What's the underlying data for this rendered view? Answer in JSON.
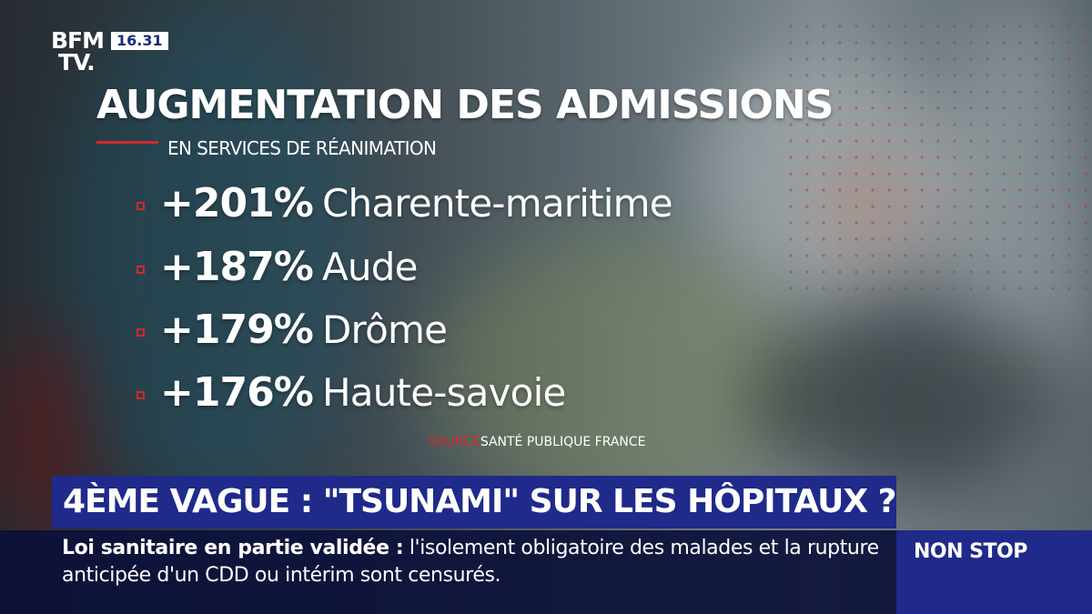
{
  "channel": {
    "logo_line1": "BFM",
    "logo_line2": "TV.",
    "time": "16.31"
  },
  "graphic": {
    "title": "AUGMENTATION DES ADMISSIONS",
    "subtitle": "EN SERVICES DE RÉANIMATION",
    "items": [
      {
        "value": "+201%",
        "region": "Charente-maritime"
      },
      {
        "value": "+187%",
        "region": "Aude"
      },
      {
        "value": "+179%",
        "region": "Drôme"
      },
      {
        "value": "+176%",
        "region": "Haute-savoie"
      }
    ],
    "source_label": "SOURCE",
    "source_name": "SANTÉ PUBLIQUE FRANCE"
  },
  "banner": {
    "headline": "4ÈME VAGUE : \"TSUNAMI\" SUR LES HÔPITAUX ?",
    "ticker_lead": "Loi sanitaire en partie validée  :",
    "ticker_text": " l'isolement obligatoire des malades et la rupture anticipée d'un CDD ou intérim sont censurés.",
    "tag": "NON STOP"
  },
  "colors": {
    "accent_red": "#d02a2a",
    "banner_blue": "#1f2a8a",
    "ticker_navy": "#0c103a"
  }
}
